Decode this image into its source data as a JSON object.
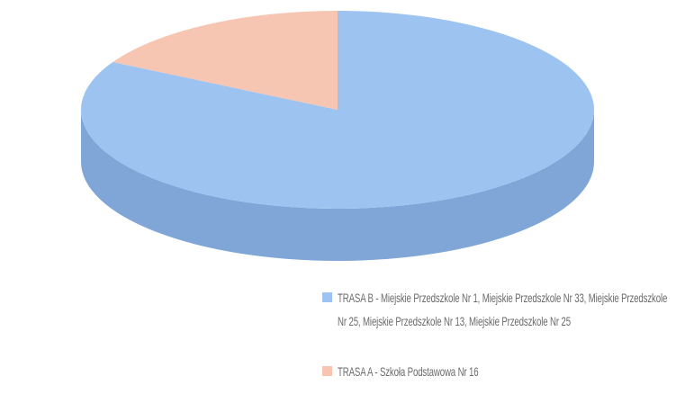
{
  "chart_data": {
    "type": "pie3d",
    "categories": [
      "TRASA B - Miejskie Przedszkole Nr 1, Miejskie Przedszkole Nr 33, Miejskie Przedszkole Nr 25, Miejskie Przedszkole Nr 13, Miejskie Przedszkole Nr 25",
      "TRASA A - Szkoła Podstawowa Nr 16"
    ],
    "values": [
      83,
      17
    ],
    "colors": [
      "#9dc3f0",
      "#f6c6b2"
    ],
    "side_colors": [
      "#7fa6d6",
      "#d9a590"
    ],
    "legend": "bottom"
  }
}
